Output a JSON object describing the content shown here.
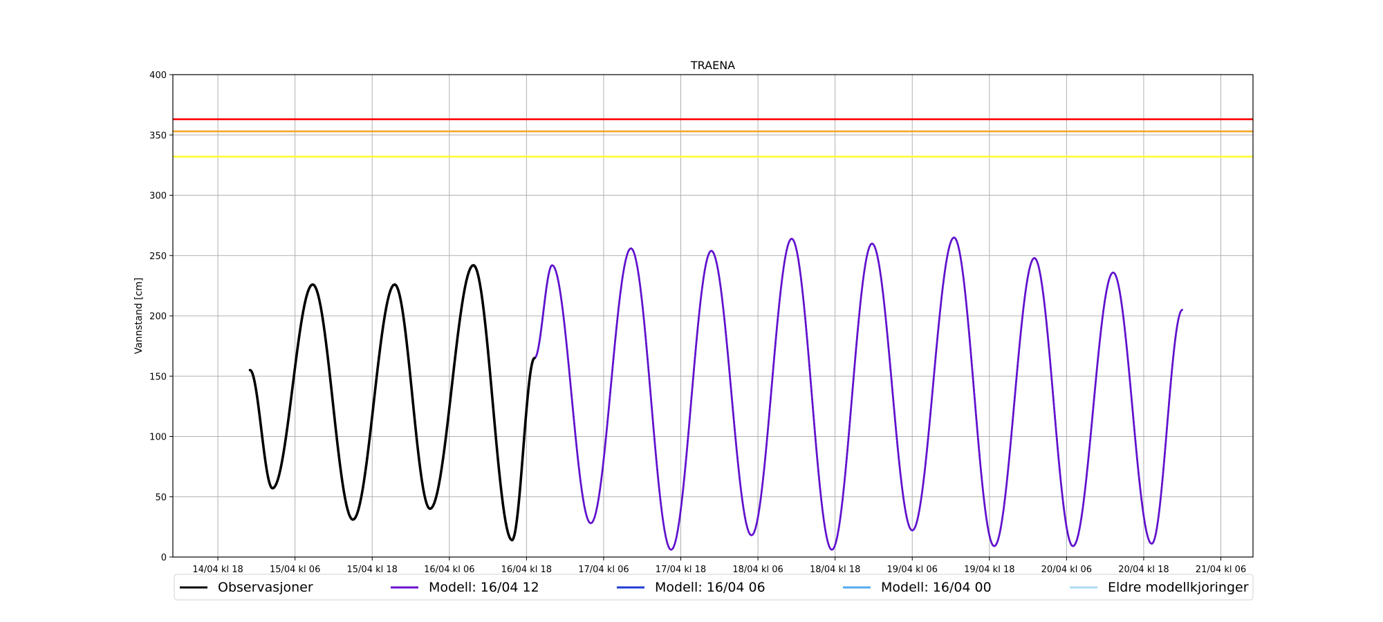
{
  "chart_data": {
    "type": "line",
    "title": "TRAENA",
    "ylabel": "Vannstand [cm]",
    "xlabel": "",
    "x_unit": "hours",
    "xlim": [
      "2024-04-14T11:00",
      "2024-04-21T11:00"
    ],
    "ylim": [
      0,
      400
    ],
    "y_ticks": [
      0,
      50,
      100,
      150,
      200,
      250,
      300,
      350,
      400
    ],
    "x_ticks": [
      "14/04 kl 18",
      "15/04 kl 06",
      "15/04 kl 18",
      "16/04 kl 06",
      "16/04 kl 18",
      "17/04 kl 06",
      "17/04 kl 18",
      "18/04 kl 06",
      "18/04 kl 18",
      "19/04 kl 06",
      "19/04 kl 18",
      "20/04 kl 06",
      "20/04 kl 18",
      "21/04 kl 06"
    ],
    "grid": true,
    "legend_position": "bottom",
    "threshold_lines": [
      {
        "y": 363,
        "color": "#ff0000"
      },
      {
        "y": 353,
        "color": "#f5a623"
      },
      {
        "y": 332,
        "color": "#ffff33"
      }
    ],
    "extrema_obs": [
      {
        "t": "2024-04-14T23:00",
        "v": 155
      },
      {
        "t": "2024-04-15T02:30",
        "v": 57
      },
      {
        "t": "2024-04-15T08:45",
        "v": 226
      },
      {
        "t": "2024-04-15T15:00",
        "v": 31
      },
      {
        "t": "2024-04-15T21:30",
        "v": 226
      },
      {
        "t": "2024-04-16T03:00",
        "v": 40
      },
      {
        "t": "2024-04-16T09:45",
        "v": 242
      },
      {
        "t": "2024-04-16T15:45",
        "v": 14
      },
      {
        "t": "2024-04-16T19:15",
        "v": 165
      }
    ],
    "extrema_model": [
      {
        "t": "2024-04-16T19:15",
        "v": 165
      },
      {
        "t": "2024-04-16T22:00",
        "v": 242
      },
      {
        "t": "2024-04-17T04:00",
        "v": 28
      },
      {
        "t": "2024-04-17T10:15",
        "v": 256
      },
      {
        "t": "2024-04-17T16:30",
        "v": 6
      },
      {
        "t": "2024-04-17T22:45",
        "v": 254
      },
      {
        "t": "2024-04-18T05:00",
        "v": 18
      },
      {
        "t": "2024-04-18T11:15",
        "v": 264
      },
      {
        "t": "2024-04-18T17:30",
        "v": 6
      },
      {
        "t": "2024-04-18T23:45",
        "v": 260
      },
      {
        "t": "2024-04-19T06:00",
        "v": 22
      },
      {
        "t": "2024-04-19T12:30",
        "v": 265
      },
      {
        "t": "2024-04-19T18:45",
        "v": 9
      },
      {
        "t": "2024-04-20T01:00",
        "v": 248
      },
      {
        "t": "2024-04-20T07:00",
        "v": 9
      },
      {
        "t": "2024-04-20T13:15",
        "v": 236
      },
      {
        "t": "2024-04-20T19:15",
        "v": 11
      },
      {
        "t": "2024-04-20T24:00",
        "v": 205
      }
    ],
    "series": [
      {
        "name": "Observasjoner",
        "color": "#000000",
        "source": "obs"
      },
      {
        "name": "Modell: 16/04 12",
        "color": "#6a0dcc",
        "source": "model"
      },
      {
        "name": "Modell: 16/04 06",
        "color": "#1f3bd6",
        "source": "model"
      },
      {
        "name": "Modell: 16/04 00",
        "color": "#55aaee",
        "source": "model"
      },
      {
        "name": "Eldre modellkjoringer",
        "color": "#aadcf5",
        "source": "model"
      }
    ]
  }
}
